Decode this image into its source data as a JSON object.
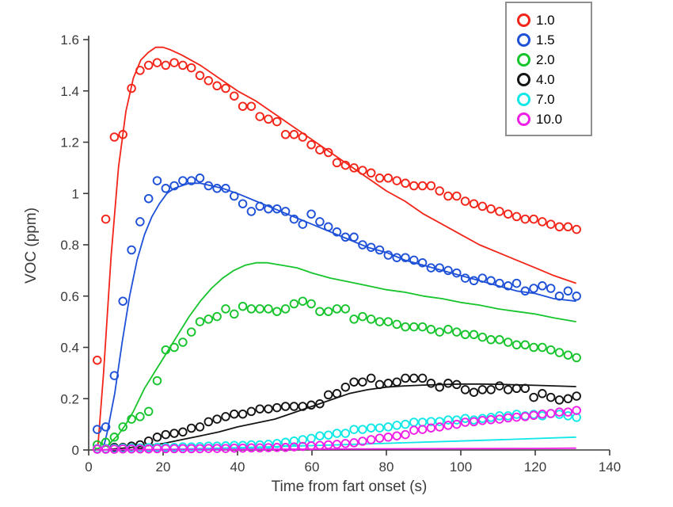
{
  "chart_data": {
    "type": "scatter",
    "title": "",
    "xlabel": "Time from fart onset (s)",
    "ylabel": "VOC (ppm)",
    "xlim": [
      0,
      140
    ],
    "ylim": [
      0,
      1.6
    ],
    "xticks": [
      0,
      20,
      40,
      60,
      80,
      100,
      120,
      140
    ],
    "yticks": [
      0,
      0.2,
      0.4,
      0.6,
      0.8,
      1,
      1.2,
      1.4,
      1.6
    ],
    "ytick_labels": [
      "0",
      "0.2",
      "0.4",
      "0.6",
      "0.8",
      "1",
      "1.2",
      "1.4",
      "1.6"
    ],
    "grid": false,
    "legend_position": "top-right",
    "background_color": "#ffffff",
    "axis_color": "#3a3a3a",
    "legend_border_color": "#8f8f8f",
    "marker_times_s": [
      2.3,
      4.6,
      6.9,
      9.2,
      11.5,
      13.8,
      16.1,
      18.4,
      20.7,
      23.0,
      25.3,
      27.6,
      29.9,
      32.2,
      34.5,
      36.8,
      39.1,
      41.4,
      43.7,
      46.0,
      48.3,
      50.6,
      52.9,
      55.2,
      57.5,
      59.8,
      62.1,
      64.4,
      66.7,
      69.0,
      71.3,
      73.6,
      75.9,
      78.2,
      80.5,
      82.8,
      85.1,
      87.4,
      89.7,
      92.0,
      94.3,
      96.6,
      98.9,
      101.2,
      103.5,
      105.8,
      108.1,
      110.4,
      112.7,
      115.0,
      117.3,
      119.6,
      121.9,
      124.2,
      126.5,
      128.8,
      131.1
    ],
    "series": [
      {
        "label": "1.0",
        "color": "#f32418",
        "markers": [
          0.35,
          0.9,
          1.22,
          1.23,
          1.41,
          1.48,
          1.5,
          1.51,
          1.5,
          1.51,
          1.5,
          1.49,
          1.46,
          1.44,
          1.42,
          1.41,
          1.38,
          1.34,
          1.34,
          1.3,
          1.29,
          1.28,
          1.23,
          1.23,
          1.22,
          1.19,
          1.17,
          1.16,
          1.12,
          1.11,
          1.1,
          1.09,
          1.08,
          1.06,
          1.06,
          1.05,
          1.04,
          1.03,
          1.03,
          1.03,
          1.01,
          0.99,
          0.99,
          0.97,
          0.96,
          0.95,
          0.94,
          0.93,
          0.92,
          0.91,
          0.9,
          0.9,
          0.89,
          0.88,
          0.87,
          0.87,
          0.86
        ],
        "fit": {
          "t": [
            2.5,
            4,
            6,
            8,
            10,
            12,
            14,
            16,
            18,
            20,
            22,
            25,
            30,
            35,
            40,
            45,
            50,
            55,
            60,
            65,
            70,
            75,
            80,
            85,
            90,
            95,
            100,
            105,
            110,
            115,
            120,
            125,
            131
          ],
          "v": [
            0.02,
            0.3,
            0.75,
            1.1,
            1.32,
            1.45,
            1.52,
            1.55,
            1.57,
            1.57,
            1.56,
            1.54,
            1.5,
            1.45,
            1.4,
            1.36,
            1.31,
            1.26,
            1.21,
            1.16,
            1.11,
            1.06,
            1.01,
            0.97,
            0.92,
            0.88,
            0.84,
            0.8,
            0.77,
            0.74,
            0.71,
            0.68,
            0.65
          ]
        }
      },
      {
        "label": "1.5",
        "color": "#1e51d8",
        "markers": [
          0.08,
          0.09,
          0.29,
          0.58,
          0.78,
          0.89,
          0.98,
          1.05,
          1.02,
          1.03,
          1.05,
          1.05,
          1.06,
          1.03,
          1.02,
          1.02,
          0.99,
          0.96,
          0.93,
          0.95,
          0.94,
          0.94,
          0.93,
          0.9,
          0.88,
          0.92,
          0.89,
          0.87,
          0.85,
          0.83,
          0.83,
          0.8,
          0.79,
          0.78,
          0.76,
          0.75,
          0.75,
          0.74,
          0.73,
          0.71,
          0.71,
          0.7,
          0.69,
          0.67,
          0.66,
          0.67,
          0.66,
          0.65,
          0.64,
          0.65,
          0.62,
          0.63,
          0.64,
          0.63,
          0.6,
          0.62,
          0.6
        ],
        "fit": {
          "t": [
            4,
            5,
            7,
            9,
            11,
            13,
            15,
            17,
            19,
            21,
            23,
            25,
            27,
            30,
            33,
            36,
            40,
            45,
            50,
            55,
            60,
            65,
            70,
            75,
            80,
            85,
            90,
            95,
            100,
            105,
            110,
            115,
            120,
            125,
            131
          ],
          "v": [
            0.01,
            0.07,
            0.22,
            0.42,
            0.6,
            0.74,
            0.84,
            0.91,
            0.96,
            1.0,
            1.02,
            1.03,
            1.04,
            1.04,
            1.03,
            1.02,
            1.0,
            0.97,
            0.94,
            0.91,
            0.88,
            0.85,
            0.82,
            0.79,
            0.77,
            0.74,
            0.72,
            0.7,
            0.68,
            0.66,
            0.64,
            0.62,
            0.61,
            0.59,
            0.58
          ]
        }
      },
      {
        "label": "2.0",
        "color": "#16c42c",
        "markers": [
          0.02,
          0.03,
          0.05,
          0.09,
          0.12,
          0.13,
          0.15,
          0.27,
          0.39,
          0.4,
          0.42,
          0.46,
          0.5,
          0.51,
          0.52,
          0.55,
          0.53,
          0.56,
          0.55,
          0.55,
          0.55,
          0.54,
          0.55,
          0.57,
          0.58,
          0.57,
          0.54,
          0.54,
          0.55,
          0.55,
          0.51,
          0.52,
          0.51,
          0.5,
          0.5,
          0.49,
          0.48,
          0.48,
          0.48,
          0.47,
          0.46,
          0.47,
          0.46,
          0.45,
          0.45,
          0.44,
          0.43,
          0.43,
          0.42,
          0.41,
          0.41,
          0.4,
          0.4,
          0.39,
          0.38,
          0.37,
          0.36
        ],
        "fit": {
          "t": [
            5,
            6,
            8,
            10,
            12,
            15,
            18,
            21,
            24,
            27,
            30,
            33,
            36,
            39,
            42,
            45,
            48,
            52,
            56,
            60,
            65,
            70,
            75,
            80,
            85,
            90,
            95,
            100,
            105,
            110,
            115,
            120,
            125,
            131
          ],
          "v": [
            0.01,
            0.03,
            0.06,
            0.1,
            0.15,
            0.24,
            0.31,
            0.38,
            0.45,
            0.52,
            0.58,
            0.63,
            0.67,
            0.7,
            0.72,
            0.73,
            0.73,
            0.72,
            0.71,
            0.69,
            0.67,
            0.655,
            0.64,
            0.625,
            0.615,
            0.6,
            0.59,
            0.575,
            0.565,
            0.55,
            0.54,
            0.53,
            0.515,
            0.5
          ]
        }
      },
      {
        "label": "4.0",
        "color": "#151515",
        "markers": [
          0.005,
          0.005,
          0.01,
          0.01,
          0.015,
          0.02,
          0.035,
          0.05,
          0.06,
          0.065,
          0.07,
          0.085,
          0.09,
          0.11,
          0.12,
          0.13,
          0.14,
          0.14,
          0.15,
          0.16,
          0.16,
          0.165,
          0.17,
          0.17,
          0.17,
          0.175,
          0.18,
          0.215,
          0.22,
          0.245,
          0.265,
          0.265,
          0.28,
          0.255,
          0.26,
          0.265,
          0.28,
          0.28,
          0.28,
          0.26,
          0.245,
          0.26,
          0.255,
          0.235,
          0.225,
          0.235,
          0.235,
          0.25,
          0.235,
          0.24,
          0.24,
          0.205,
          0.22,
          0.205,
          0.195,
          0.2,
          0.21
        ],
        "fit": {
          "t": [
            5,
            10,
            15,
            20,
            25,
            30,
            35,
            40,
            45,
            50,
            55,
            60,
            65,
            70,
            75,
            80,
            85,
            90,
            95,
            100,
            105,
            110,
            115,
            120,
            125,
            131
          ],
          "v": [
            0.002,
            0.008,
            0.015,
            0.025,
            0.04,
            0.055,
            0.07,
            0.09,
            0.105,
            0.12,
            0.145,
            0.17,
            0.195,
            0.22,
            0.235,
            0.245,
            0.25,
            0.253,
            0.255,
            0.257,
            0.257,
            0.256,
            0.254,
            0.252,
            0.25,
            0.247
          ]
        }
      },
      {
        "label": "7.0",
        "color": "#10e8e8",
        "markers": [
          0.005,
          0.005,
          0.006,
          0.007,
          0.008,
          0.008,
          0.009,
          0.01,
          0.01,
          0.01,
          0.012,
          0.012,
          0.013,
          0.015,
          0.015,
          0.016,
          0.018,
          0.018,
          0.02,
          0.02,
          0.022,
          0.025,
          0.03,
          0.035,
          0.04,
          0.045,
          0.055,
          0.058,
          0.065,
          0.065,
          0.08,
          0.08,
          0.086,
          0.086,
          0.09,
          0.096,
          0.1,
          0.108,
          0.108,
          0.111,
          0.111,
          0.117,
          0.117,
          0.123,
          0.117,
          0.123,
          0.127,
          0.133,
          0.133,
          0.139,
          0.133,
          0.139,
          0.133,
          0.142,
          0.139,
          0.133,
          0.127
        ],
        "fit": {
          "t": [
            20,
            40,
            60,
            80,
            100,
            115,
            131
          ],
          "v": [
            0.002,
            0.009,
            0.017,
            0.026,
            0.035,
            0.042,
            0.05
          ]
        }
      },
      {
        "label": "10.0",
        "color": "#ef1fe8",
        "markers": [
          0.003,
          0.003,
          0.003,
          0.004,
          0.004,
          0.004,
          0.004,
          0.005,
          0.005,
          0.005,
          0.005,
          0.005,
          0.005,
          0.006,
          0.006,
          0.006,
          0.007,
          0.007,
          0.008,
          0.008,
          0.009,
          0.01,
          0.01,
          0.012,
          0.014,
          0.016,
          0.018,
          0.02,
          0.022,
          0.025,
          0.028,
          0.034,
          0.04,
          0.046,
          0.05,
          0.055,
          0.06,
          0.077,
          0.08,
          0.086,
          0.09,
          0.096,
          0.1,
          0.108,
          0.11,
          0.115,
          0.118,
          0.12,
          0.125,
          0.128,
          0.13,
          0.135,
          0.14,
          0.142,
          0.148,
          0.148,
          0.154
        ],
        "fit": {
          "t": [
            2,
            30,
            60,
            90,
            120,
            131
          ],
          "v": [
            0.001,
            0.002,
            0.003,
            0.005,
            0.006,
            0.007
          ]
        }
      }
    ]
  }
}
